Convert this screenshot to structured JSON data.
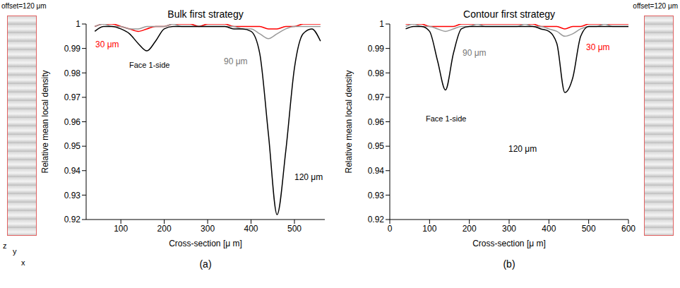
{
  "side_labels": [
    "offset=120 μm",
    "offset=120 μm"
  ],
  "axis_letters": [
    "z",
    "y",
    "x"
  ],
  "chart_data": [
    {
      "type": "line",
      "panel": "(a)",
      "title": "Bulk first strategy",
      "x_label": "Cross-section [μ m]",
      "y_label": "Relative mean local density",
      "xlim": [
        20,
        570
      ],
      "xticks": [
        100,
        200,
        300,
        400,
        500
      ],
      "ylim": [
        0.92,
        1
      ],
      "yticks": [
        0.92,
        0.93,
        0.94,
        0.95,
        0.96,
        0.97,
        0.98,
        0.99,
        1
      ],
      "annotations": [
        "Face 1-side"
      ],
      "x": [
        40,
        60,
        80,
        100,
        120,
        140,
        160,
        180,
        200,
        220,
        240,
        260,
        280,
        300,
        320,
        340,
        360,
        380,
        400,
        420,
        440,
        460,
        480,
        500,
        520,
        540,
        560
      ],
      "series": [
        {
          "name": "30 μm",
          "color": "#ff0000",
          "values": [
            0.999,
            1,
            1,
            0.999,
            0.998,
            0.997,
            0.998,
            0.999,
            0.999,
            1,
            1,
            1,
            0.999,
            1,
            1,
            1,
            0.999,
            0.999,
            0.999,
            0.999,
            0.998,
            0.998,
            0.999,
            0.999,
            1,
            1,
            1
          ]
        },
        {
          "name": "90 μm",
          "color": "#999999",
          "values": [
            0.999,
            1,
            0.999,
            0.999,
            0.998,
            0.998,
            0.999,
            0.999,
            0.999,
            1,
            0.999,
            0.999,
            0.999,
            0.999,
            0.999,
            0.999,
            0.999,
            0.998,
            0.998,
            0.996,
            0.994,
            0.996,
            0.998,
            0.999,
            0.999,
            0.999,
            0.999
          ]
        },
        {
          "name": "120 μm",
          "color": "#000000",
          "values": [
            0.997,
            0.999,
            0.999,
            0.998,
            0.996,
            0.992,
            0.989,
            0.993,
            0.998,
            0.999,
            0.999,
            0.999,
            0.999,
            0.999,
            0.999,
            0.999,
            0.998,
            0.998,
            0.997,
            0.988,
            0.955,
            0.922,
            0.948,
            0.982,
            0.996,
            0.998,
            0.993
          ]
        }
      ]
    },
    {
      "type": "line",
      "panel": "(b)",
      "title": "Contour first strategy",
      "x_label": "Cross-section [μ m]",
      "y_label": "Relative mean local density",
      "xlim": [
        0,
        600
      ],
      "xticks": [
        0,
        100,
        200,
        300,
        400,
        500,
        600
      ],
      "ylim": [
        0.92,
        1
      ],
      "yticks": [
        0.92,
        0.93,
        0.94,
        0.95,
        0.96,
        0.97,
        0.98,
        0.99,
        1
      ],
      "annotations": [
        "Face 1-side"
      ],
      "x": [
        40,
        60,
        80,
        100,
        120,
        140,
        160,
        180,
        200,
        220,
        240,
        260,
        280,
        300,
        320,
        340,
        360,
        380,
        400,
        420,
        440,
        460,
        480,
        500,
        520,
        540,
        560,
        580,
        600
      ],
      "series": [
        {
          "name": "30 μm",
          "color": "#ff0000",
          "values": [
            1,
            1,
            1,
            0.999,
            0.999,
            0.999,
            0.999,
            1,
            1,
            1,
            1,
            1,
            1,
            1,
            1,
            1,
            1,
            0.999,
            0.999,
            0.999,
            0.998,
            0.999,
            0.999,
            1,
            1,
            1,
            1,
            1,
            1
          ]
        },
        {
          "name": "90 μm",
          "color": "#999999",
          "values": [
            0.999,
            1,
            0.999,
            0.999,
            0.998,
            0.997,
            0.998,
            0.999,
            0.999,
            1,
            0.999,
            0.999,
            0.999,
            0.999,
            0.999,
            1,
            0.999,
            0.999,
            0.998,
            0.997,
            0.995,
            0.996,
            0.998,
            0.999,
            0.999,
            1,
            0.999,
            0.999,
            0.999
          ]
        },
        {
          "name": "120 μm",
          "color": "#000000",
          "values": [
            0.998,
            0.999,
            0.999,
            0.997,
            0.985,
            0.973,
            0.988,
            0.998,
            0.999,
            0.999,
            0.999,
            0.999,
            0.999,
            0.999,
            0.999,
            0.999,
            0.999,
            0.998,
            0.997,
            0.992,
            0.972,
            0.978,
            0.995,
            0.999,
            0.999,
            0.999,
            0.999,
            0.999,
            0.999
          ]
        }
      ]
    }
  ]
}
